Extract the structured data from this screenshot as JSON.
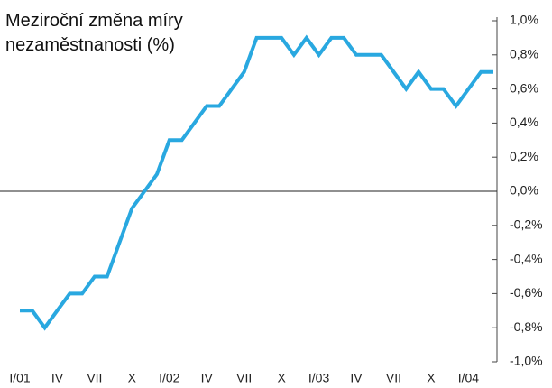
{
  "chart_data": {
    "type": "line",
    "title": "Meziroční změna míry nezaměstnanosti (%)",
    "categories": [
      "I/01",
      null,
      null,
      "IV",
      null,
      null,
      "VII",
      null,
      null,
      "X",
      null,
      null,
      "I/02",
      null,
      null,
      "IV",
      null,
      null,
      "VII",
      null,
      null,
      "X",
      null,
      null,
      "I/03",
      null,
      null,
      "IV",
      null,
      null,
      "VII",
      null,
      null,
      "X",
      null,
      null,
      "I/04",
      null,
      null
    ],
    "series": [
      {
        "color": "#29a8e0",
        "values": [
          -0.7,
          -0.7,
          -0.8,
          -0.7,
          -0.6,
          -0.6,
          -0.5,
          -0.5,
          -0.3,
          -0.1,
          0.0,
          0.1,
          0.3,
          0.3,
          0.4,
          0.5,
          0.5,
          0.6,
          0.7,
          0.9,
          0.9,
          0.9,
          0.8,
          0.9,
          0.8,
          0.9,
          0.9,
          0.8,
          0.8,
          0.8,
          0.7,
          0.6,
          0.7,
          0.6,
          0.6,
          0.5,
          0.6,
          0.7,
          0.7
        ]
      }
    ],
    "ylim": [
      -1.0,
      1.0
    ],
    "yticks": [
      {
        "value": -1.0,
        "label": "-1,0%"
      },
      {
        "value": -0.8,
        "label": "-0,8%"
      },
      {
        "value": -0.6,
        "label": "-0,6%"
      },
      {
        "value": -0.4,
        "label": "-0,4%"
      },
      {
        "value": -0.2,
        "label": "-0,2%"
      },
      {
        "value": 0.0,
        "label": "0,0%"
      },
      {
        "value": 0.2,
        "label": "0,2%"
      },
      {
        "value": 0.4,
        "label": "0,4%"
      },
      {
        "value": 0.6,
        "label": "0,6%"
      },
      {
        "value": 0.8,
        "label": "0,8%"
      },
      {
        "value": 1.0,
        "label": "1,0%"
      }
    ],
    "y_axis_position": "right",
    "zero_line": true,
    "grid": false
  }
}
